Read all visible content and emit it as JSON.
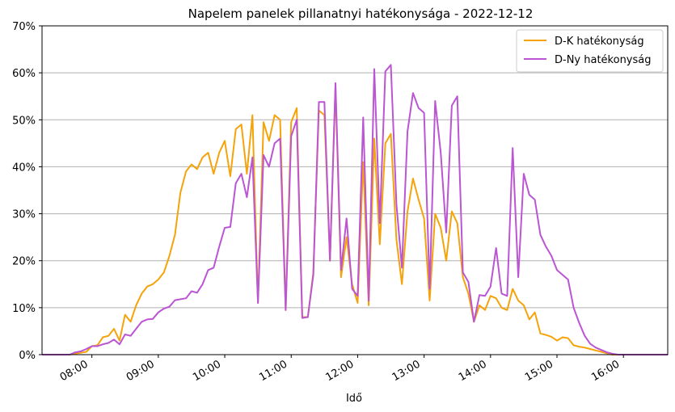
{
  "chart_data": {
    "type": "line",
    "title": "Napelem panelek pillanatnyi hatékonysága  -  2022-12-12",
    "xlabel": "Idő",
    "ylabel": "",
    "x_unit": "minutes since midnight",
    "xlim": [
      "07:15",
      "16:40"
    ],
    "ylim": [
      0,
      70
    ],
    "yticks": [
      0,
      10,
      20,
      30,
      40,
      50,
      60,
      70
    ],
    "ytick_labels": [
      "0%",
      "10%",
      "20%",
      "30%",
      "40%",
      "50%",
      "60%",
      "70%"
    ],
    "xticks": [
      "08:00",
      "09:00",
      "10:00",
      "11:00",
      "12:00",
      "13:00",
      "14:00",
      "15:00",
      "16:00"
    ],
    "grid": "horizontal",
    "legend_position": "top-right",
    "colors": {
      "dk": "#f5a30a",
      "dny": "#bb55d4"
    },
    "series": [
      {
        "name": "D-K hatékonyság",
        "color": "#f5a30a",
        "points": [
          [
            "07:15",
            0
          ],
          [
            "07:20",
            0
          ],
          [
            "07:25",
            0
          ],
          [
            "07:30",
            0
          ],
          [
            "07:35",
            0
          ],
          [
            "07:40",
            0
          ],
          [
            "07:45",
            0.2
          ],
          [
            "07:50",
            0.4
          ],
          [
            "07:55",
            0.6
          ],
          [
            "08:00",
            1.8
          ],
          [
            "08:05",
            2
          ],
          [
            "08:10",
            3.7
          ],
          [
            "08:15",
            4
          ],
          [
            "08:20",
            5.5
          ],
          [
            "08:25",
            3
          ],
          [
            "08:30",
            8.5
          ],
          [
            "08:35",
            7
          ],
          [
            "08:40",
            10.5
          ],
          [
            "08:45",
            13
          ],
          [
            "08:50",
            14.5
          ],
          [
            "08:55",
            15
          ],
          [
            "09:00",
            16
          ],
          [
            "09:05",
            17.5
          ],
          [
            "09:10",
            21
          ],
          [
            "09:15",
            25.5
          ],
          [
            "09:20",
            34.5
          ],
          [
            "09:25",
            39
          ],
          [
            "09:30",
            40.5
          ],
          [
            "09:35",
            39.5
          ],
          [
            "09:40",
            42
          ],
          [
            "09:45",
            43
          ],
          [
            "09:50",
            38.5
          ],
          [
            "09:55",
            43
          ],
          [
            "10:00",
            45.5
          ],
          [
            "10:05",
            38
          ],
          [
            "10:10",
            48
          ],
          [
            "10:15",
            49
          ],
          [
            "10:20",
            38.5
          ],
          [
            "10:25",
            51
          ],
          [
            "10:30",
            11
          ],
          [
            "10:35",
            49.5
          ],
          [
            "10:40",
            45.5
          ],
          [
            "10:45",
            51
          ],
          [
            "10:50",
            50
          ],
          [
            "10:55",
            9.5
          ],
          [
            "11:00",
            49.5
          ],
          [
            "11:05",
            52.5
          ],
          [
            "11:10",
            8
          ],
          [
            "11:15",
            8
          ],
          [
            "11:20",
            17.5
          ],
          [
            "11:25",
            52
          ],
          [
            "11:30",
            51
          ],
          [
            "11:35",
            20
          ],
          [
            "11:40",
            57
          ],
          [
            "11:45",
            16.5
          ],
          [
            "11:50",
            25
          ],
          [
            "11:55",
            15
          ],
          [
            "12:00",
            11
          ],
          [
            "12:05",
            41
          ],
          [
            "12:10",
            10.5
          ],
          [
            "12:15",
            46
          ],
          [
            "12:20",
            23.5
          ],
          [
            "12:25",
            45
          ],
          [
            "12:30",
            47
          ],
          [
            "12:35",
            24.5
          ],
          [
            "12:40",
            15
          ],
          [
            "12:45",
            30.5
          ],
          [
            "12:50",
            37.5
          ],
          [
            "12:55",
            33
          ],
          [
            "13:00",
            29
          ],
          [
            "13:05",
            11.5
          ],
          [
            "13:10",
            30
          ],
          [
            "13:15",
            27
          ],
          [
            "13:20",
            20
          ],
          [
            "13:25",
            30.5
          ],
          [
            "13:30",
            28
          ],
          [
            "13:35",
            16.5
          ],
          [
            "13:40",
            13
          ],
          [
            "13:45",
            7
          ],
          [
            "13:50",
            10.5
          ],
          [
            "13:55",
            9.5
          ],
          [
            "14:00",
            12.5
          ],
          [
            "14:05",
            12
          ],
          [
            "14:10",
            10
          ],
          [
            "14:15",
            9.5
          ],
          [
            "14:20",
            14
          ],
          [
            "14:25",
            11.5
          ],
          [
            "14:30",
            10.5
          ],
          [
            "14:35",
            7.5
          ],
          [
            "14:40",
            9
          ],
          [
            "14:45",
            4.5
          ],
          [
            "14:50",
            4.2
          ],
          [
            "14:55",
            3.8
          ],
          [
            "15:00",
            3
          ],
          [
            "15:05",
            3.7
          ],
          [
            "15:10",
            3.5
          ],
          [
            "15:15",
            2
          ],
          [
            "15:20",
            1.7
          ],
          [
            "15:25",
            1.5
          ],
          [
            "15:30",
            1.2
          ],
          [
            "15:35",
            0.9
          ],
          [
            "15:40",
            0.6
          ],
          [
            "15:45",
            0.3
          ],
          [
            "15:50",
            0
          ],
          [
            "15:55",
            0
          ],
          [
            "16:00",
            0
          ],
          [
            "16:05",
            0
          ],
          [
            "16:10",
            0
          ],
          [
            "16:15",
            0
          ],
          [
            "16:20",
            0
          ],
          [
            "16:25",
            0
          ],
          [
            "16:30",
            0
          ],
          [
            "16:35",
            0
          ],
          [
            "16:40",
            0
          ]
        ]
      },
      {
        "name": "D-Ny hatékonyság",
        "color": "#bb55d4",
        "points": [
          [
            "07:15",
            0
          ],
          [
            "07:20",
            0
          ],
          [
            "07:25",
            0
          ],
          [
            "07:30",
            0
          ],
          [
            "07:35",
            0
          ],
          [
            "07:40",
            0
          ],
          [
            "07:45",
            0.5
          ],
          [
            "07:50",
            0.7
          ],
          [
            "07:55",
            1.2
          ],
          [
            "08:00",
            1.8
          ],
          [
            "08:05",
            1.8
          ],
          [
            "08:10",
            2.2
          ],
          [
            "08:15",
            2.5
          ],
          [
            "08:20",
            3.2
          ],
          [
            "08:25",
            2.2
          ],
          [
            "08:30",
            4.3
          ],
          [
            "08:35",
            4
          ],
          [
            "08:40",
            5.5
          ],
          [
            "08:45",
            7
          ],
          [
            "08:50",
            7.5
          ],
          [
            "08:55",
            7.6
          ],
          [
            "09:00",
            9
          ],
          [
            "09:05",
            9.8
          ],
          [
            "09:10",
            10.2
          ],
          [
            "09:15",
            11.6
          ],
          [
            "09:20",
            11.8
          ],
          [
            "09:25",
            12
          ],
          [
            "09:30",
            13.5
          ],
          [
            "09:35",
            13.2
          ],
          [
            "09:40",
            15
          ],
          [
            "09:45",
            18
          ],
          [
            "09:50",
            18.5
          ],
          [
            "09:55",
            23
          ],
          [
            "10:00",
            27
          ],
          [
            "10:05",
            27.2
          ],
          [
            "10:10",
            36.5
          ],
          [
            "10:15",
            38.5
          ],
          [
            "10:20",
            33.5
          ],
          [
            "10:25",
            42
          ],
          [
            "10:30",
            11
          ],
          [
            "10:35",
            42.5
          ],
          [
            "10:40",
            40
          ],
          [
            "10:45",
            45
          ],
          [
            "10:50",
            46
          ],
          [
            "10:55",
            9.5
          ],
          [
            "11:00",
            46.5
          ],
          [
            "11:05",
            50
          ],
          [
            "11:10",
            7.8
          ],
          [
            "11:15",
            8
          ],
          [
            "11:20",
            17
          ],
          [
            "11:25",
            53.8
          ],
          [
            "11:30",
            53.8
          ],
          [
            "11:35",
            20
          ],
          [
            "11:40",
            57.8
          ],
          [
            "11:45",
            18
          ],
          [
            "11:50",
            29
          ],
          [
            "11:55",
            14
          ],
          [
            "12:00",
            12.5
          ],
          [
            "12:05",
            50.5
          ],
          [
            "12:10",
            11.5
          ],
          [
            "12:15",
            60.8
          ],
          [
            "12:20",
            28
          ],
          [
            "12:25",
            60.3
          ],
          [
            "12:30",
            61.7
          ],
          [
            "12:35",
            32
          ],
          [
            "12:40",
            18.5
          ],
          [
            "12:45",
            47.5
          ],
          [
            "12:50",
            55.7
          ],
          [
            "12:55",
            52.5
          ],
          [
            "13:00",
            51.5
          ],
          [
            "13:05",
            14
          ],
          [
            "13:10",
            54
          ],
          [
            "13:15",
            43
          ],
          [
            "13:20",
            26
          ],
          [
            "13:25",
            53
          ],
          [
            "13:30",
            55
          ],
          [
            "13:35",
            17.5
          ],
          [
            "13:40",
            15.5
          ],
          [
            "13:45",
            7
          ],
          [
            "13:50",
            12.7
          ],
          [
            "13:55",
            12.5
          ],
          [
            "14:00",
            14.5
          ],
          [
            "14:05",
            22.7
          ],
          [
            "14:10",
            13
          ],
          [
            "14:15",
            12.5
          ],
          [
            "14:20",
            44
          ],
          [
            "14:25",
            16.5
          ],
          [
            "14:30",
            38.5
          ],
          [
            "14:35",
            34
          ],
          [
            "14:40",
            33
          ],
          [
            "14:45",
            25.5
          ],
          [
            "14:50",
            23
          ],
          [
            "14:55",
            21
          ],
          [
            "15:00",
            18
          ],
          [
            "15:05",
            17
          ],
          [
            "15:10",
            16
          ],
          [
            "15:15",
            10
          ],
          [
            "15:20",
            6.8
          ],
          [
            "15:25",
            4
          ],
          [
            "15:30",
            2.3
          ],
          [
            "15:35",
            1.5
          ],
          [
            "15:40",
            1
          ],
          [
            "15:45",
            0.5
          ],
          [
            "15:50",
            0.2
          ],
          [
            "15:55",
            0
          ],
          [
            "16:00",
            0
          ],
          [
            "16:05",
            0
          ],
          [
            "16:10",
            0
          ],
          [
            "16:15",
            0
          ],
          [
            "16:20",
            0
          ],
          [
            "16:25",
            0
          ],
          [
            "16:30",
            0
          ],
          [
            "16:35",
            0
          ],
          [
            "16:40",
            0
          ]
        ]
      }
    ]
  }
}
